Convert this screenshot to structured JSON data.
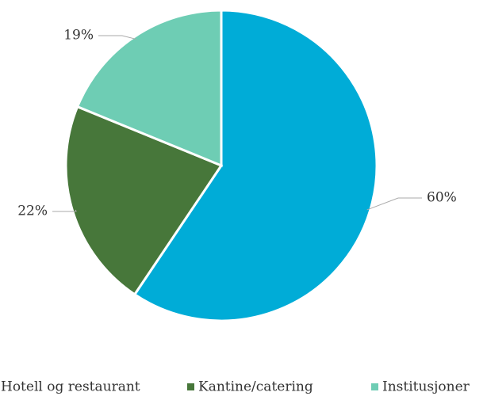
{
  "chart_data": {
    "type": "pie",
    "categories": [
      "Hotell og restaurant",
      "Kantine/catering",
      "Institusjoner"
    ],
    "values": [
      60,
      22,
      19
    ],
    "value_labels": [
      "60%",
      "22%",
      "19%"
    ],
    "colors": [
      "#00acd7",
      "#47773a",
      "#6ecdb4"
    ],
    "legend": "bottom"
  }
}
